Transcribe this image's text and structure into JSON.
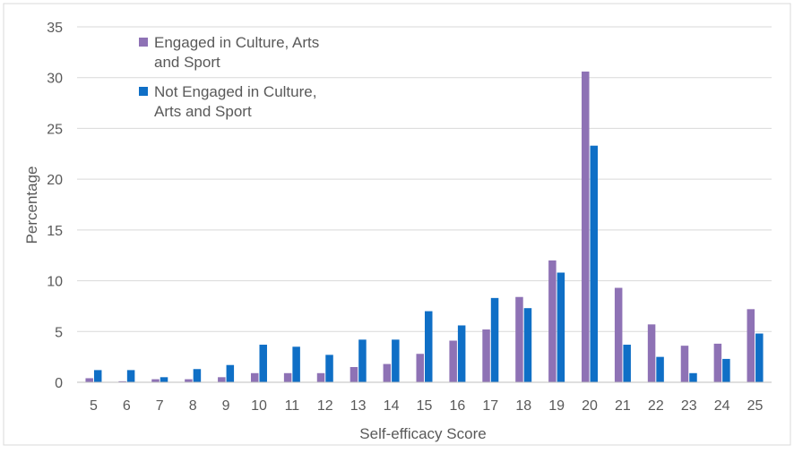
{
  "chart_data": {
    "type": "bar",
    "title": "",
    "xlabel": "Self-efficacy Score",
    "ylabel": "Percentage",
    "ylim": [
      0,
      35
    ],
    "yticks": [
      0,
      5,
      10,
      15,
      20,
      25,
      30,
      35
    ],
    "grid": true,
    "legend_position": "top-left",
    "categories": [
      "5",
      "6",
      "7",
      "8",
      "9",
      "10",
      "11",
      "12",
      "13",
      "14",
      "15",
      "16",
      "17",
      "18",
      "19",
      "20",
      "21",
      "22",
      "23",
      "24",
      "25"
    ],
    "series": [
      {
        "name": "Engaged in Culture, Arts and Sport",
        "legend_lines": [
          "Engaged in Culture, Arts",
          "and Sport"
        ],
        "color": "#8e72b5",
        "values": [
          0.4,
          0.1,
          0.3,
          0.3,
          0.5,
          0.9,
          0.9,
          0.9,
          1.5,
          1.8,
          2.8,
          4.1,
          5.2,
          8.4,
          12.0,
          30.6,
          9.3,
          5.7,
          3.6,
          3.8,
          7.2
        ]
      },
      {
        "name": "Not Engaged in Culture, Arts and Sport",
        "legend_lines": [
          "Not Engaged in Culture,",
          "Arts and Sport"
        ],
        "color": "#0f6fc6",
        "values": [
          1.2,
          1.2,
          0.5,
          1.3,
          1.7,
          3.7,
          3.5,
          2.7,
          4.2,
          4.2,
          7.0,
          5.6,
          8.3,
          7.3,
          10.8,
          23.3,
          3.7,
          2.5,
          0.9,
          2.3,
          4.8
        ]
      }
    ]
  }
}
